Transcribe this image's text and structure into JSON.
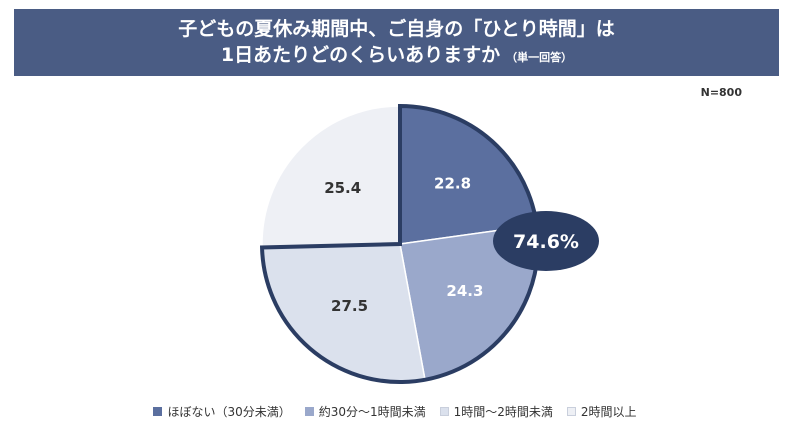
{
  "header": {
    "title_line1": "子どもの夏休み期間中、ご自身の「ひとり時間」は",
    "title_line2": "1日あたりどのくらいありますか",
    "title_note": "（単一回答）",
    "banner_color": "#4a5c84"
  },
  "sample_size": "N=800",
  "chart_data": {
    "type": "pie",
    "title": "子どもの夏休み期間中、ご自身の「ひとり時間」は1日あたりどのくらいありますか",
    "unit": "%",
    "slices": [
      {
        "label": "ほぼない（30分未満）",
        "value": 22.8,
        "display": "22.8",
        "color": "#5b6f9f",
        "text_color": "#ffffff",
        "emphasized": true
      },
      {
        "label": "約30分〜1時間未満",
        "value": 24.3,
        "display": "24.3",
        "color": "#9aa8cb",
        "text_color": "#ffffff",
        "emphasized": true
      },
      {
        "label": "1時間〜2時間未満",
        "value": 27.5,
        "display": "27.5",
        "color": "#dbe1ed",
        "text_color": "#333333",
        "emphasized": true
      },
      {
        "label": "2時間以上",
        "value": 25.4,
        "display": "25.4",
        "color": "#eef0f5",
        "text_color": "#333333",
        "emphasized": false
      }
    ],
    "callout": {
      "text": "74.6%",
      "value": 74.6,
      "color": "#2b3d63",
      "text_color": "#ffffff"
    },
    "outline_color": "#2b3d63",
    "legend_position": "bottom"
  }
}
